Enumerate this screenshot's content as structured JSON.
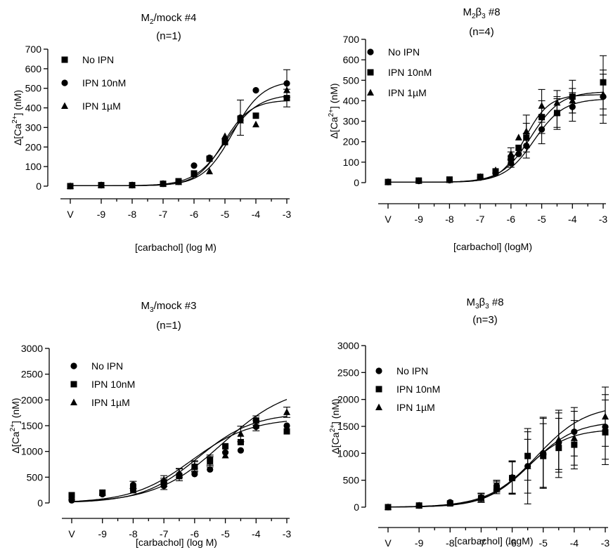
{
  "chart_data": [
    {
      "type": "scatter",
      "title": [
        "M",
        "2",
        "/mock #4"
      ],
      "subtitle": "(n=1)",
      "ylabel": [
        "Δ[Ca",
        "2+",
        "] (nM)"
      ],
      "xlabel": "[carbachol] (log M)",
      "x_tick_labels": [
        "V",
        "-9",
        "-8",
        "-7",
        "-6",
        "-5",
        "-4",
        "-3"
      ],
      "x_ticks": [
        -10,
        -9,
        -8,
        -7,
        -6,
        -5,
        -4,
        -3
      ],
      "y_ticks": [
        0,
        100,
        200,
        300,
        400,
        500,
        600,
        700
      ],
      "xlim": [
        -10.2,
        -2.9
      ],
      "ylim": [
        0,
        700
      ],
      "legend_position": "top-left",
      "series": [
        {
          "name": "No IPN",
          "marker": "square",
          "x": [
            -10,
            -9,
            -8,
            -7,
            -6.5,
            -6,
            -5.5,
            -5,
            -4.5,
            -4,
            -3
          ],
          "y": [
            0,
            5,
            5,
            12,
            25,
            65,
            140,
            225,
            345,
            360,
            450
          ],
          "err": [
            0,
            0,
            0,
            0,
            0,
            0,
            0,
            0,
            0,
            0,
            45
          ],
          "fit": {
            "bottom": 2,
            "top": 470,
            "logec50": -4.95,
            "hill": 0.85
          }
        },
        {
          "name": "IPN 10nM",
          "marker": "circle",
          "x": [
            -10,
            -9,
            -8,
            -7,
            -6.5,
            -6,
            -5.5,
            -5,
            -4.5,
            -4,
            -3
          ],
          "y": [
            0,
            5,
            5,
            12,
            22,
            105,
            145,
            240,
            350,
            490,
            525
          ],
          "err": [
            0,
            0,
            0,
            0,
            0,
            0,
            0,
            0,
            90,
            0,
            70
          ],
          "fit": {
            "bottom": 2,
            "top": 540,
            "logec50": -4.75,
            "hill": 0.9
          }
        },
        {
          "name": "IPN 1µM",
          "marker": "triangle",
          "x": [
            -10,
            -9,
            -8,
            -7,
            -6.5,
            -6,
            -5.5,
            -5,
            -4.5,
            -4,
            -3
          ],
          "y": [
            0,
            5,
            5,
            12,
            20,
            60,
            75,
            255,
            335,
            315,
            490
          ],
          "err": [
            0,
            0,
            0,
            0,
            0,
            0,
            0,
            0,
            0,
            0,
            0
          ],
          "fit": {
            "bottom": 2,
            "top": 440,
            "logec50": -5.05,
            "hill": 1.0
          }
        }
      ]
    },
    {
      "type": "scatter",
      "title": [
        "M",
        "2",
        "β",
        "3",
        " #8"
      ],
      "subtitle": "(n=4)",
      "ylabel": [
        "Δ[Ca",
        "2+",
        "] (nM)"
      ],
      "xlabel": "[carbachol] (logM)",
      "x_tick_labels": [
        "V",
        "-9",
        "-8",
        "-7",
        "-6",
        "-5",
        "-4",
        "-3"
      ],
      "x_ticks": [
        -10,
        -9,
        -8,
        -7,
        -6,
        -5,
        -4,
        -3
      ],
      "y_ticks": [
        0,
        100,
        200,
        300,
        400,
        500,
        600,
        700
      ],
      "xlim": [
        -10.2,
        -2.9
      ],
      "ylim": [
        0,
        700
      ],
      "legend_position": "top-left",
      "series": [
        {
          "name": "No IPN",
          "marker": "circle",
          "x": [
            -10,
            -9,
            -8,
            -7,
            -6.5,
            -6,
            -5.75,
            -5.5,
            -5,
            -4.5,
            -4,
            -3
          ],
          "y": [
            3,
            8,
            12,
            25,
            45,
            95,
            140,
            180,
            260,
            340,
            370,
            420
          ],
          "err": [
            0,
            0,
            0,
            0,
            0,
            20,
            0,
            60,
            70,
            70,
            70,
            130
          ],
          "fit": {
            "bottom": 2,
            "top": 410,
            "logec50": -5.25,
            "hill": 0.9
          }
        },
        {
          "name": "IPN 10nM",
          "marker": "square",
          "x": [
            -10,
            -9,
            -8,
            -7,
            -6.5,
            -6,
            -5.75,
            -5.5,
            -5,
            -4.5,
            -4,
            -3
          ],
          "y": [
            3,
            10,
            15,
            28,
            55,
            120,
            170,
            220,
            320,
            340,
            420,
            490
          ],
          "err": [
            0,
            0,
            0,
            0,
            0,
            30,
            0,
            70,
            80,
            80,
            80,
            130
          ],
          "fit": {
            "bottom": 2,
            "top": 445,
            "logec50": -5.35,
            "hill": 0.9
          }
        },
        {
          "name": "IPN 1µM",
          "marker": "triangle",
          "x": [
            -10,
            -9,
            -8,
            -7,
            -6.5,
            -6,
            -5.75,
            -5.5,
            -5,
            -4.5,
            -4,
            -3
          ],
          "y": [
            3,
            8,
            12,
            28,
            60,
            140,
            220,
            250,
            375,
            390,
            400,
            430
          ],
          "err": [
            0,
            0,
            0,
            0,
            0,
            30,
            0,
            80,
            80,
            60,
            60,
            100
          ],
          "fit": {
            "bottom": 2,
            "top": 430,
            "logec50": -5.55,
            "hill": 1.1
          }
        }
      ]
    },
    {
      "type": "scatter",
      "title": [
        "M",
        "3",
        "/mock #3"
      ],
      "subtitle": "(n=1)",
      "ylabel": [
        "Δ[Ca",
        "2+",
        "] (nM)"
      ],
      "xlabel": "[carbachol] (log M)",
      "x_tick_labels": [
        "V",
        "-9",
        "-8",
        "-7",
        "-6",
        "-5",
        "-4",
        "-3"
      ],
      "x_ticks": [
        -10,
        -9,
        -8,
        -7,
        -6,
        -5,
        -4,
        -3
      ],
      "y_ticks": [
        0,
        500,
        1000,
        1500,
        2000,
        2500,
        3000
      ],
      "xlim": [
        -10.2,
        -2.9
      ],
      "ylim": [
        0,
        3000
      ],
      "legend_position": "top-left",
      "series": [
        {
          "name": "No IPN",
          "marker": "circle",
          "x": [
            -10,
            -9,
            -8,
            -7,
            -6.5,
            -6,
            -5.5,
            -5,
            -4.5,
            -4,
            -3
          ],
          "y": [
            50,
            170,
            350,
            330,
            550,
            560,
            650,
            980,
            1020,
            1480,
            1500
          ],
          "err": [
            0,
            0,
            70,
            70,
            120,
            0,
            0,
            0,
            0,
            0,
            0
          ],
          "fit": {
            "bottom": 0,
            "top": 1750,
            "logec50": -5.9,
            "hill": 0.48
          }
        },
        {
          "name": "IPN 10nM",
          "marker": "square",
          "x": [
            -10,
            -9,
            -8,
            -7,
            -6.5,
            -6,
            -5.5,
            -5,
            -4.5,
            -4,
            -3
          ],
          "y": [
            150,
            200,
            280,
            400,
            520,
            700,
            830,
            1100,
            1180,
            1600,
            1390
          ],
          "err": [
            0,
            0,
            0,
            80,
            0,
            100,
            100,
            0,
            0,
            90,
            0
          ],
          "fit": {
            "bottom": 0,
            "top": 1650,
            "logec50": -6.1,
            "hill": 0.45
          }
        },
        {
          "name": "IPN 1µM",
          "marker": "triangle",
          "x": [
            -10,
            -9,
            -8,
            -7,
            -6.5,
            -6,
            -5.5,
            -5,
            -4.5,
            -4,
            -3
          ],
          "y": [
            120,
            190,
            240,
            450,
            580,
            720,
            800,
            920,
            1340,
            1500,
            1760
          ],
          "err": [
            0,
            0,
            0,
            80,
            80,
            100,
            100,
            0,
            150,
            100,
            100
          ],
          "fit": {
            "bottom": 0,
            "top": 2300,
            "logec50": -5.1,
            "hill": 0.4
          }
        }
      ]
    },
    {
      "type": "scatter",
      "title": [
        "M",
        "3",
        "β",
        "3",
        " #8"
      ],
      "subtitle": "(n=3)",
      "ylabel": [
        "Δ[Ca",
        "2+",
        "] (nM)"
      ],
      "xlabel": "[carbachol] (logM)",
      "x_tick_labels": [
        "V",
        "-9",
        "-8",
        "-7",
        "-6",
        "-5",
        "-4",
        "-3"
      ],
      "x_ticks": [
        -10,
        -9,
        -8,
        -7,
        -6,
        -5,
        -4,
        -3
      ],
      "y_ticks": [
        0,
        500,
        1000,
        1500,
        2000,
        2500,
        3000
      ],
      "xlim": [
        -10.2,
        -2.9
      ],
      "ylim": [
        0,
        3000
      ],
      "legend_position": "top-left",
      "series": [
        {
          "name": "No IPN",
          "marker": "circle",
          "x": [
            -10,
            -9,
            -8,
            -7,
            -6.5,
            -6,
            -5.5,
            -5,
            -4.5,
            -4,
            -3
          ],
          "y": [
            0,
            30,
            90,
            180,
            400,
            550,
            760,
            1000,
            1200,
            1400,
            1490
          ],
          "err": [
            0,
            0,
            0,
            80,
            100,
            300,
            700,
            650,
            550,
            450,
            600
          ],
          "fit": {
            "bottom": 0,
            "top": 1600,
            "logec50": -5.4,
            "hill": 0.6
          }
        },
        {
          "name": "IPN 10nM",
          "marker": "square",
          "x": [
            -10,
            -9,
            -8,
            -7,
            -6.5,
            -6,
            -5.5,
            -5,
            -4.5,
            -4,
            -3
          ],
          "y": [
            0,
            30,
            70,
            170,
            350,
            540,
            950,
            950,
            1100,
            1160,
            1390
          ],
          "err": [
            0,
            0,
            0,
            80,
            100,
            300,
            450,
            600,
            550,
            450,
            600
          ],
          "fit": {
            "bottom": 0,
            "top": 1450,
            "logec50": -5.55,
            "hill": 0.65
          }
        },
        {
          "name": "IPN 1µM",
          "marker": "triangle",
          "x": [
            -10,
            -9,
            -8,
            -7,
            -6.5,
            -6,
            -5.5,
            -5,
            -4.5,
            -4,
            -3
          ],
          "y": [
            0,
            30,
            80,
            170,
            380,
            560,
            760,
            1020,
            1250,
            1280,
            1680
          ],
          "err": [
            0,
            0,
            0,
            80,
            100,
            300,
            500,
            650,
            550,
            500,
            550
          ],
          "fit": {
            "bottom": 0,
            "top": 1900,
            "logec50": -5.2,
            "hill": 0.55
          }
        }
      ]
    }
  ]
}
